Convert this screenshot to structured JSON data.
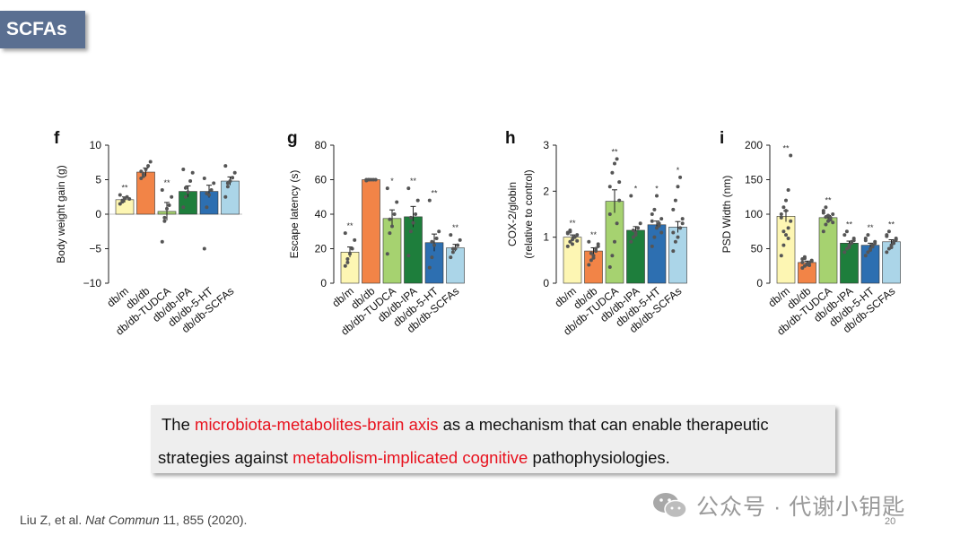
{
  "slide": {
    "title": "SCFAs",
    "citation_authors": "Liu Z, et al.",
    "citation_journal": "Nat Commun",
    "citation_rest": "11, 855 (2020).",
    "watermark_text": "公众号 · 代谢小钥匙",
    "page_number": "20",
    "callout": {
      "line1_pre": "The ",
      "line1_red": "microbiota-metabolites-brain axis",
      "line1_post": " as a mechanism that can enable therapeutic",
      "line2_pre": "strategies against ",
      "line2_red": "metabolism-implicated cognitive",
      "line2_post": " pathophysiologies."
    }
  },
  "colors": {
    "bars": [
      "#fdf6b3",
      "#f28447",
      "#a6d270",
      "#1e7e3c",
      "#2d6fb1",
      "#abd5e8"
    ],
    "points": "#555555",
    "highlight": "#e8111d",
    "badge": "#5a6f91"
  },
  "chart_data": [
    {
      "panel": "f",
      "type": "bar",
      "ylabel": "Body weight gain (g)",
      "ylim": [
        -10,
        10
      ],
      "yticks": [
        10,
        5,
        0,
        -5,
        -10
      ],
      "ytick_labels": [
        "10",
        "5",
        "0",
        "−5",
        "−10"
      ],
      "categories": [
        "db/m",
        "db/db",
        "db/db-TUDCA",
        "db/db-IPA",
        "db/db-5-HT",
        "db/db-SCFAs"
      ],
      "values": [
        2.1,
        6.1,
        0.4,
        3.3,
        3.3,
        4.8
      ],
      "errors": [
        0.4,
        0.6,
        1.3,
        0.8,
        0.9,
        0.6
      ],
      "points": [
        [
          1.5,
          2.0,
          2.3,
          2.5,
          2.2,
          2.8,
          1.8
        ],
        [
          5.2,
          5.8,
          6.5,
          7.0,
          7.6,
          6.2,
          5.5
        ],
        [
          -4.0,
          -1.0,
          0.8,
          1.3,
          2.5,
          3.5,
          -0.5
        ],
        [
          1.0,
          2.5,
          3.2,
          4.8,
          6.0,
          6.5,
          3.8
        ],
        [
          -5.0,
          1.0,
          2.8,
          3.5,
          4.5,
          5.2,
          3.0
        ],
        [
          2.5,
          4.0,
          4.8,
          5.3,
          6.0,
          7.0,
          4.5
        ]
      ],
      "annotations": [
        "**",
        "",
        "**",
        "",
        "",
        ""
      ]
    },
    {
      "panel": "g",
      "type": "bar",
      "ylabel": "Escape latency (s)",
      "ylim": [
        0,
        80
      ],
      "yticks": [
        0,
        20,
        40,
        60,
        80
      ],
      "ytick_labels": [
        "0",
        "20",
        "40",
        "60",
        "80"
      ],
      "categories": [
        "db/m",
        "db/db",
        "db/db-TUDCA",
        "db/db-IPA",
        "db/db-5-HT",
        "db/db-SCFAs"
      ],
      "values": [
        18,
        60,
        37.5,
        38.5,
        23.5,
        20.5
      ],
      "errors": [
        3,
        0.3,
        5,
        6,
        5,
        2
      ],
      "points": [
        [
          10,
          14,
          17,
          20,
          25,
          29,
          12
        ],
        [
          59.5,
          60,
          60,
          60,
          60,
          60,
          60
        ],
        [
          17,
          29,
          33,
          40,
          47,
          55,
          37
        ],
        [
          16,
          30,
          35,
          40,
          48,
          55,
          38
        ],
        [
          9,
          15,
          22,
          26,
          30,
          48,
          24
        ],
        [
          15,
          18,
          20,
          22,
          25,
          28,
          20
        ]
      ],
      "annotations": [
        "**",
        "",
        "*",
        "**",
        "**",
        "**"
      ]
    },
    {
      "panel": "h",
      "type": "bar",
      "ylabel": "COX-2/globin",
      "ylabel2": "(relative to control)",
      "ylim": [
        0,
        3
      ],
      "yticks": [
        0,
        1,
        2,
        3
      ],
      "ytick_labels": [
        "0",
        "1",
        "2",
        "3"
      ],
      "categories": [
        "db/m",
        "db/db",
        "db/db-TUDCA",
        "db/db-IPA",
        "db/db-5-HT",
        "db/db-SCFAs"
      ],
      "values": [
        1.0,
        0.7,
        1.78,
        1.15,
        1.27,
        1.22
      ],
      "errors": [
        0.05,
        0.07,
        0.25,
        0.08,
        0.08,
        0.12
      ],
      "points": [
        [
          0.8,
          0.9,
          0.95,
          1.0,
          1.05,
          1.1,
          1.15,
          0.85,
          1.0,
          0.92,
          1.08,
          1.12
        ],
        [
          0.4,
          0.5,
          0.6,
          0.7,
          0.8,
          0.9,
          0.65,
          0.55,
          0.75,
          0.85
        ],
        [
          0.35,
          0.6,
          0.9,
          1.3,
          1.8,
          2.1,
          2.4,
          2.6,
          2.7,
          2.2,
          1.5
        ],
        [
          0.9,
          1.0,
          1.1,
          1.2,
          1.3,
          1.9,
          1.15,
          1.05
        ],
        [
          0.8,
          1.0,
          1.2,
          1.3,
          1.4,
          1.5,
          1.6,
          1.9,
          1.25,
          1.1,
          1.35
        ],
        [
          0.7,
          0.9,
          1.0,
          1.2,
          1.4,
          1.6,
          1.8,
          2.1,
          2.3,
          1.3,
          1.1
        ]
      ],
      "annotations": [
        "**",
        "**",
        "**",
        "*",
        "*",
        "*"
      ]
    },
    {
      "panel": "i",
      "type": "bar",
      "ylabel": "PSD Width (nm)",
      "ylim": [
        0,
        200
      ],
      "yticks": [
        0,
        50,
        100,
        150,
        200
      ],
      "ytick_labels": [
        "0",
        "50",
        "100",
        "150",
        "200"
      ],
      "categories": [
        "db/m",
        "db/db",
        "db/db-TUDCA",
        "db/db-IPA",
        "db/db-5-HT",
        "db/db-SCFAs"
      ],
      "values": [
        97,
        30,
        95,
        58,
        55,
        60
      ],
      "errors": [
        8,
        2,
        3,
        3,
        3,
        3
      ],
      "points": [
        [
          40,
          55,
          70,
          80,
          90,
          100,
          110,
          120,
          135,
          185,
          95,
          75,
          105,
          65
        ],
        [
          22,
          25,
          27,
          30,
          32,
          35,
          38,
          28,
          26,
          33,
          30,
          36
        ],
        [
          75,
          85,
          90,
          95,
          100,
          105,
          110,
          98,
          92,
          88,
          102,
          96
        ],
        [
          45,
          50,
          55,
          60,
          65,
          70,
          75,
          52,
          58,
          62
        ],
        [
          40,
          45,
          50,
          55,
          60,
          65,
          70,
          48,
          53,
          58,
          62
        ],
        [
          45,
          50,
          55,
          60,
          65,
          70,
          75,
          52,
          58,
          63,
          68
        ]
      ],
      "annotations": [
        "**",
        "",
        "**",
        "**",
        "**",
        "**"
      ]
    }
  ]
}
